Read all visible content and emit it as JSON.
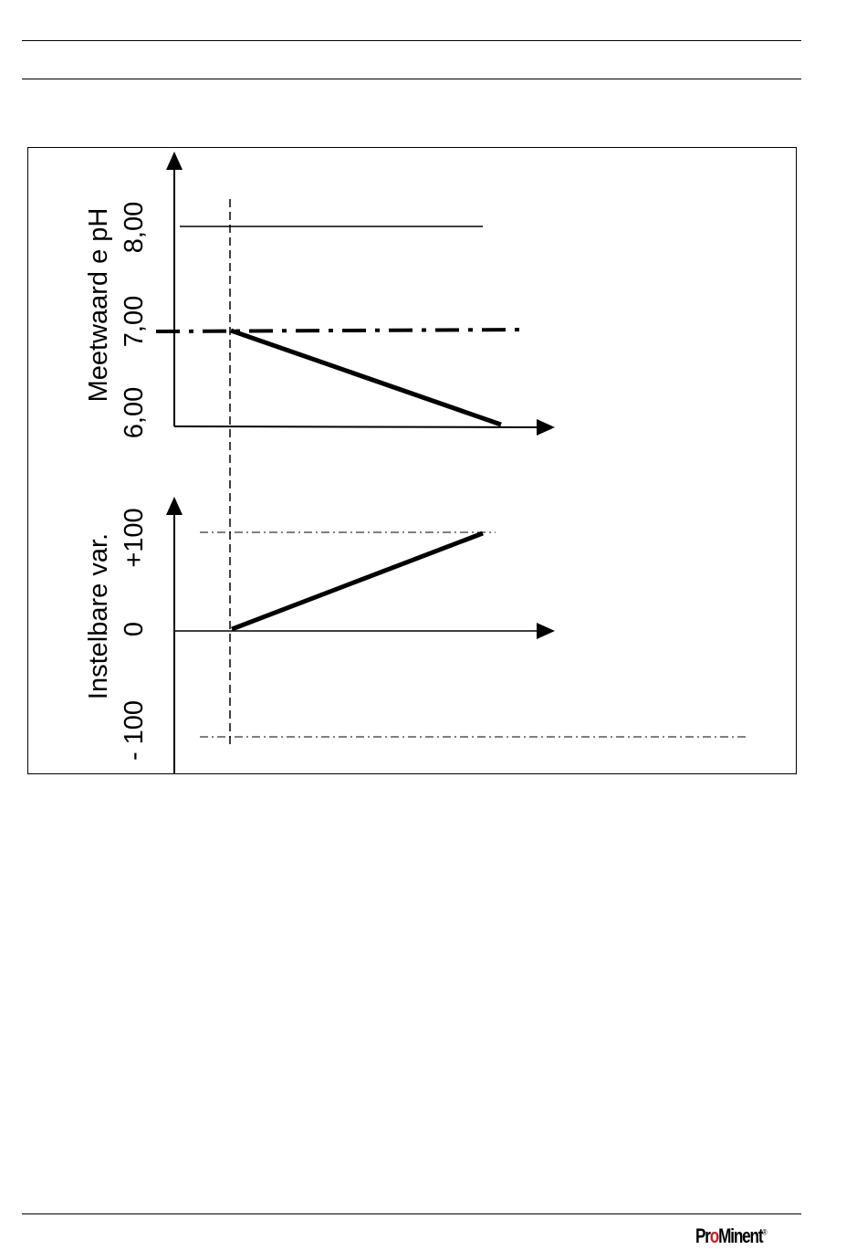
{
  "figure": {
    "top_chart": {
      "ylabel": "Meetwaard e pH",
      "tick_labels": [
        "6,00",
        "7,00",
        "8,00"
      ]
    },
    "bottom_chart": {
      "ylabel": "Instelbare var.",
      "tick_labels": [
        "- 100",
        "0",
        "+100"
      ]
    }
  },
  "chart_data": [
    {
      "type": "line",
      "title": "",
      "ylabel": "Meetwaard e pH",
      "ylim": [
        6,
        8
      ],
      "series": [
        {
          "values": [
            7.0,
            6.0
          ]
        }
      ],
      "annotations": [
        "upper limit line at 8,00",
        "setpoint dash-dot line at 7,00"
      ]
    },
    {
      "type": "line",
      "title": "",
      "ylabel": "Instelbare var.",
      "ylim": [
        -100,
        100
      ],
      "series": [
        {
          "values": [
            0,
            100
          ]
        }
      ],
      "annotations": [
        "dash-dot reference lines at +100 and - 100"
      ]
    }
  ],
  "footer": {
    "logo_text": "ProMinent",
    "logo_mark": "®",
    "brand_color": "#d01f29"
  }
}
